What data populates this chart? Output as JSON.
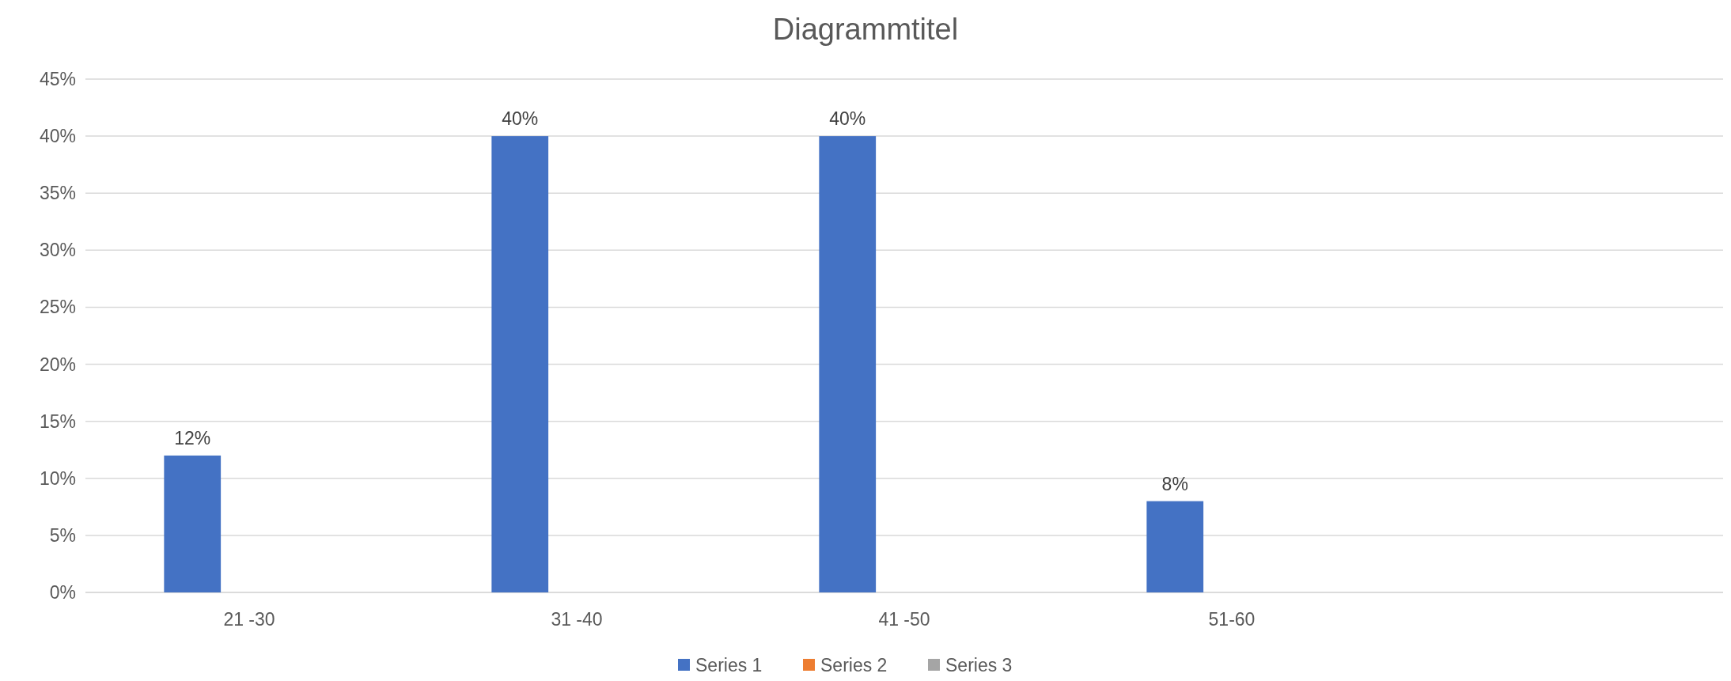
{
  "chart_data": {
    "type": "bar",
    "title": "Diagrammtitel",
    "categories": [
      "21 -30",
      "31 -40",
      "41 -50",
      "51-60",
      null
    ],
    "series": [
      {
        "name": "Series 1",
        "color": "#4472c4",
        "values": [
          12,
          40,
          40,
          8,
          null
        ],
        "value_labels": [
          "12%",
          "40%",
          "40%",
          "8%",
          null
        ]
      },
      {
        "name": "Series 2",
        "color": "#ed7d31",
        "values": [
          null,
          null,
          null,
          null,
          null
        ]
      },
      {
        "name": "Series 3",
        "color": "#a5a5a5",
        "values": [
          null,
          null,
          null,
          null,
          null
        ]
      }
    ],
    "ylim": [
      0,
      45
    ],
    "yticks": [
      {
        "value": 0,
        "label": "0%"
      },
      {
        "value": 5,
        "label": "5%"
      },
      {
        "value": 10,
        "label": "10%"
      },
      {
        "value": 15,
        "label": "15%"
      },
      {
        "value": 20,
        "label": "20%"
      },
      {
        "value": 25,
        "label": "25%"
      },
      {
        "value": 30,
        "label": "30%"
      },
      {
        "value": 35,
        "label": "35%"
      },
      {
        "value": 40,
        "label": "40%"
      },
      {
        "value": 45,
        "label": "45%"
      }
    ],
    "grid": "y",
    "legend": "bottom"
  }
}
